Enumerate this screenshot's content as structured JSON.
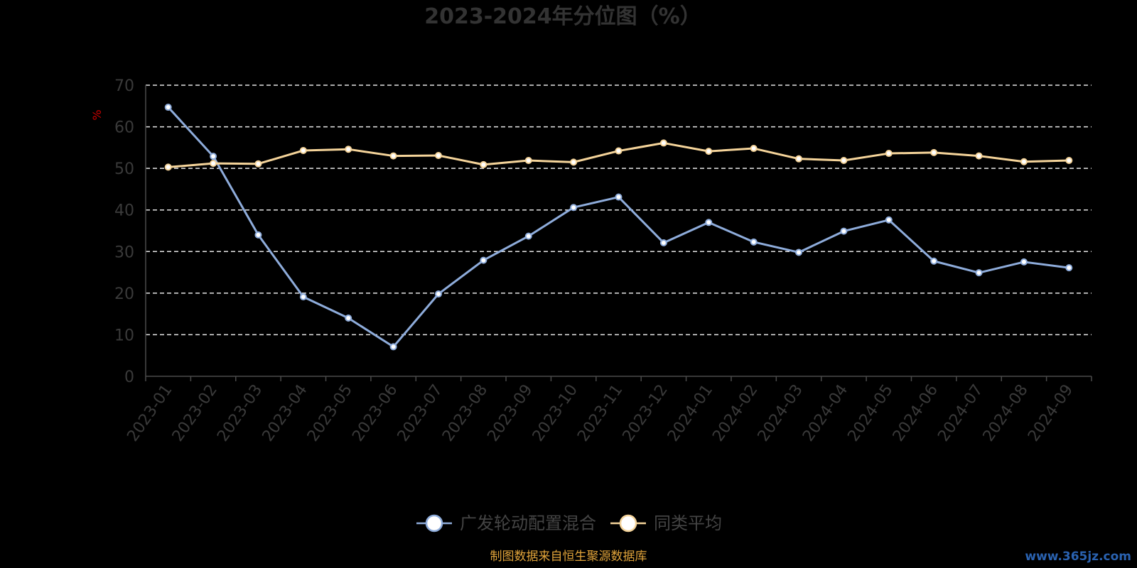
{
  "chart_data": {
    "type": "line",
    "title": "2023-2024年分位图（%）",
    "ylabel": "%",
    "ylim": [
      0,
      70
    ],
    "yticks": [
      0,
      10,
      20,
      30,
      40,
      50,
      60,
      70
    ],
    "grid": true,
    "legend_position": "bottom",
    "categories": [
      "2023-01",
      "2023-02",
      "2023-03",
      "2023-04",
      "2023-05",
      "2023-06",
      "2023-07",
      "2023-08",
      "2023-09",
      "2023-10",
      "2023-11",
      "2023-12",
      "2024-01",
      "2024-02",
      "2024-03",
      "2024-04",
      "2024-05",
      "2024-06",
      "2024-07",
      "2024-08",
      "2024-09"
    ],
    "series": [
      {
        "name": "广发轮动配置混合",
        "color": "#8eacdb",
        "values": [
          64.7,
          52.9,
          34.0,
          19.1,
          14.0,
          7.1,
          19.8,
          27.9,
          33.7,
          40.6,
          43.1,
          32.1,
          37.0,
          32.3,
          29.8,
          34.9,
          37.6,
          27.7,
          24.9,
          27.5,
          26.1
        ]
      },
      {
        "name": "同类平均",
        "color": "#f5d49a",
        "values": [
          50.3,
          51.2,
          51.1,
          54.3,
          54.6,
          53.0,
          53.1,
          50.9,
          51.9,
          51.5,
          54.2,
          56.1,
          54.1,
          54.8,
          52.3,
          51.9,
          53.6,
          53.8,
          53.0,
          51.6,
          51.9
        ]
      }
    ]
  },
  "footer": "制图数据来自恒生聚源数据库",
  "watermark": "www.365jz.com"
}
